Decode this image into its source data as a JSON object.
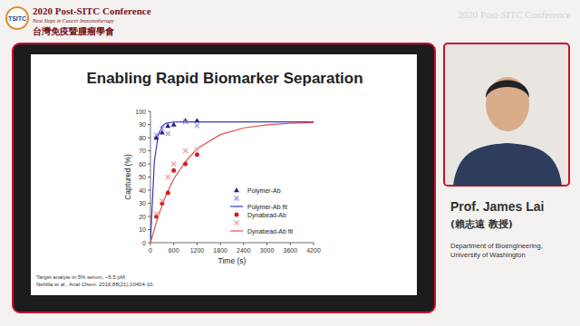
{
  "header": {
    "logo": "TSITC",
    "title": "2020 Post-SITC Conference",
    "subtitle": "Next Steps in Cancer Immunotherapy",
    "chinese_title": "台灣免疫暨腫瘤學會",
    "watermark": "2020 Post-SITC Conference"
  },
  "speaker": {
    "name": "Prof. James Lai",
    "chinese_name": "(賴志遠 教授)",
    "affiliation": [
      "Department of Bioengineering,",
      "University of Washington"
    ]
  },
  "chart_data": {
    "type": "scatter",
    "title": "Enabling Rapid Biomarker Separation",
    "x_label": "Time (s)",
    "y_label": "Captured (%)",
    "annotations": [
      "Target analyte in 5% serum, ~5.5 pM",
      "Nehilla et al., Anal Chem. 2016;88(21):10404-10."
    ],
    "xlim": [
      0,
      4200
    ],
    "xticks": [
      0,
      600,
      1200,
      1800,
      2400,
      3000,
      3600,
      4200
    ],
    "ylim": [
      0,
      100
    ],
    "yticks": [
      0,
      10,
      20,
      30,
      40,
      50,
      60,
      70,
      80,
      90,
      100
    ],
    "grid": false,
    "legend": "lower right",
    "series": [
      {
        "name": "Polymer-Ab",
        "color": "#23238f",
        "marker": "triangle",
        "x": [
          150,
          300,
          450,
          600,
          900,
          1200
        ],
        "values": [
          80,
          84,
          89,
          90,
          93,
          93
        ]
      },
      {
        "color": "#9b90d2",
        "marker": "x",
        "x": [
          150,
          300,
          450,
          900,
          1200
        ],
        "values": [
          82,
          87,
          83,
          92,
          89
        ]
      },
      {
        "name": "Polymer-Ab fit",
        "color": "#3535c8",
        "type": "line",
        "line_style": "solid",
        "x": [
          0,
          100,
          200,
          300,
          400,
          600,
          800,
          1200,
          2400,
          4200
        ],
        "values": [
          0,
          61.7,
          82,
          88.7,
          91,
          91.9,
          92,
          92,
          92,
          92
        ]
      },
      {
        "name": "Dynabead-Ab",
        "color": "#d42020",
        "marker": "circle",
        "x": [
          150,
          300,
          450,
          600,
          900,
          1200
        ],
        "values": [
          20,
          30,
          38,
          55,
          60,
          67
        ]
      },
      {
        "color": "#f0a0a0",
        "marker": "x",
        "x": [
          150,
          300,
          450,
          600,
          900,
          1200
        ],
        "values": [
          22,
          32,
          50,
          60,
          70,
          71
        ]
      },
      {
        "name": "Dynabead-Ab fit",
        "color": "#e05050",
        "type": "line",
        "line_style": "solid",
        "x": [
          0,
          200,
          400,
          600,
          900,
          1200,
          1800,
          2400,
          3000,
          3600,
          4200
        ],
        "values": [
          0,
          20.3,
          36.2,
          48.6,
          61.7,
          71.5,
          82.3,
          87.4,
          89.8,
          91,
          91.5
        ]
      }
    ]
  }
}
